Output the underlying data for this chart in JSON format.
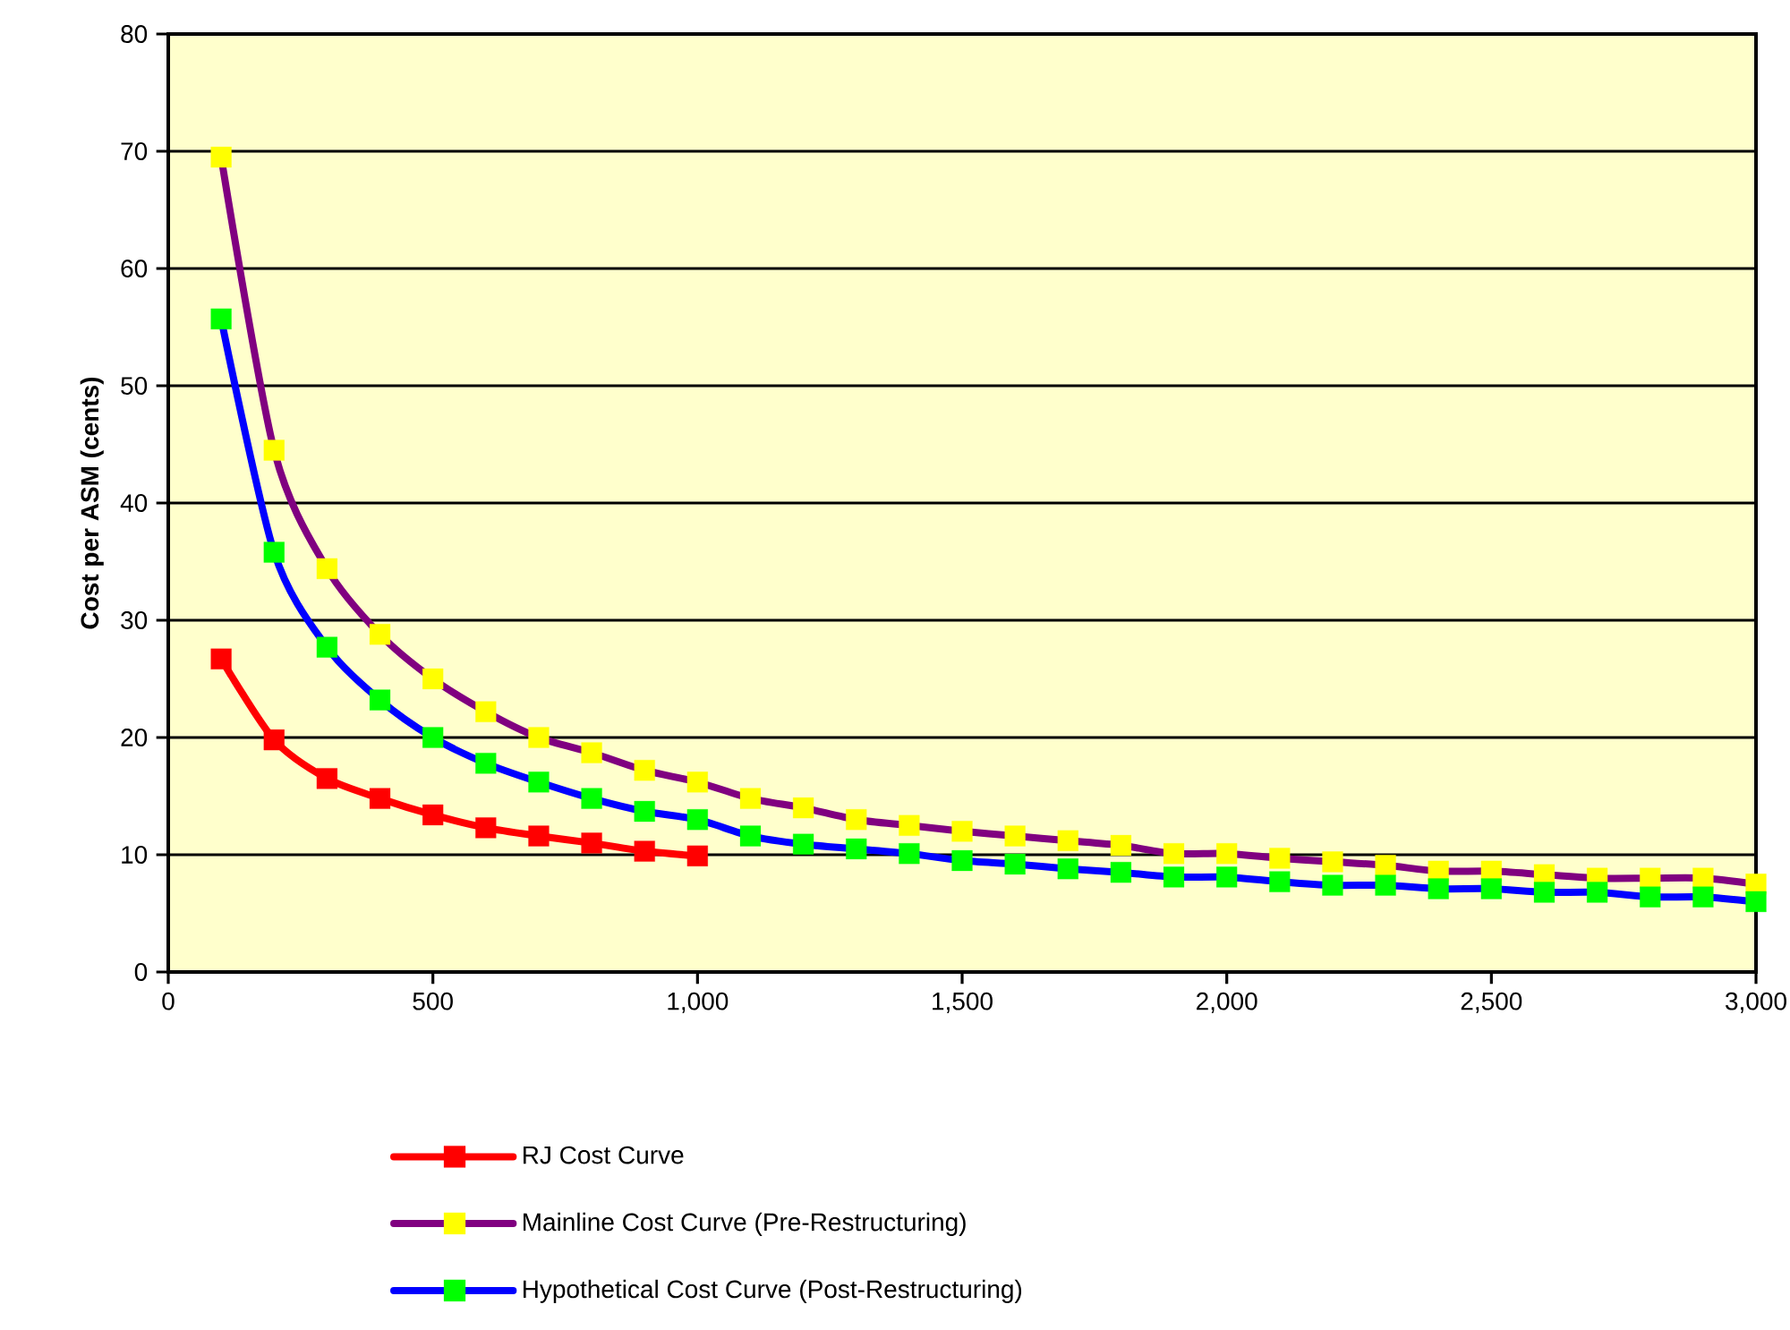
{
  "chart_data": {
    "type": "line",
    "ylabel": "Cost per ASM (cents)",
    "xlim": [
      0,
      3000
    ],
    "ylim": [
      0,
      80
    ],
    "xticks": [
      0,
      500,
      {
        "value": 1000,
        "label": "1,000"
      },
      {
        "value": 1500,
        "label": "1,500"
      },
      {
        "value": 2000,
        "label": "2,000"
      },
      {
        "value": 2500,
        "label": "2,500"
      },
      {
        "value": 3000,
        "label": "3,000"
      }
    ],
    "yticks": [
      0,
      10,
      20,
      30,
      40,
      50,
      60,
      70,
      80
    ],
    "grid": "y",
    "legend": "bottom",
    "marker": "square",
    "line_style": "solid",
    "series": [
      {
        "name": "RJ Cost Curve",
        "color": "#ff0000",
        "colors": [
          "#ff0000",
          "#ff0000",
          "#ff0000",
          "#ff0000",
          "#ff0000",
          "#ff0000",
          "#ff0000",
          "#ff0000",
          "#ff0000",
          "#ff0000"
        ],
        "x": [
          100,
          200,
          300,
          400,
          500,
          600,
          700,
          800,
          900,
          1000
        ],
        "values": [
          26.7,
          19.8,
          16.5,
          14.8,
          13.4,
          12.3,
          11.6,
          11.0,
          10.3,
          9.9
        ]
      },
      {
        "name": "Mainline Cost Curve (Pre-Restructuring)",
        "color": "#800080",
        "colors": [
          "#ffff00",
          "#ffff00",
          "#ffff00",
          "#ffff00",
          "#ffff00",
          "#ffff00",
          "#ffff00",
          "#ffff00",
          "#ffff00",
          "#ffff00",
          "#ffff00",
          "#ffff00",
          "#ffff00",
          "#ffff00",
          "#ffff00",
          "#ffff00",
          "#ffff00",
          "#ffff00",
          "#ffff00",
          "#ffff00",
          "#ffff00",
          "#ffff00",
          "#ffff00",
          "#ffff00",
          "#ffff00",
          "#ffff00",
          "#ffff00",
          "#ffff00",
          "#ffff00",
          "#ffff00"
        ],
        "x": [
          100,
          200,
          300,
          400,
          500,
          600,
          700,
          800,
          900,
          1000,
          1100,
          1200,
          1300,
          1400,
          1500,
          1600,
          1700,
          1800,
          1900,
          2000,
          2100,
          2200,
          2300,
          2400,
          2500,
          2600,
          2700,
          2800,
          2900,
          3000
        ],
        "values": [
          69.5,
          44.5,
          34.4,
          28.8,
          25.0,
          22.2,
          20.0,
          18.7,
          17.2,
          16.2,
          14.8,
          14.0,
          13.0,
          12.5,
          12.0,
          11.6,
          11.2,
          10.8,
          10.1,
          10.1,
          9.7,
          9.4,
          9.1,
          8.6,
          8.6,
          8.3,
          8.0,
          8.0,
          8.0,
          7.5
        ]
      },
      {
        "name": "Hypothetical Cost Curve (Post-Restructuring)",
        "color": "#0000ff",
        "colors": [
          "#00ff00",
          "#00ff00",
          "#00ff00",
          "#00ff00",
          "#00ff00",
          "#00ff00",
          "#00ff00",
          "#00ff00",
          "#00ff00",
          "#00ff00",
          "#00ff00",
          "#00ff00",
          "#00ff00",
          "#00ff00",
          "#00ff00",
          "#00ff00",
          "#00ff00",
          "#00ff00",
          "#00ff00",
          "#00ff00",
          "#00ff00",
          "#00ff00",
          "#00ff00",
          "#00ff00",
          "#00ff00",
          "#00ff00",
          "#00ff00",
          "#00ff00",
          "#00ff00",
          "#00ff00"
        ],
        "x": [
          100,
          200,
          300,
          400,
          500,
          600,
          700,
          800,
          900,
          1000,
          1100,
          1200,
          1300,
          1400,
          1500,
          1600,
          1700,
          1800,
          1900,
          2000,
          2100,
          2200,
          2300,
          2400,
          2500,
          2600,
          2700,
          2800,
          2900,
          3000
        ],
        "values": [
          55.7,
          35.8,
          27.7,
          23.2,
          20.0,
          17.8,
          16.2,
          14.8,
          13.7,
          13.0,
          11.6,
          10.9,
          10.5,
          10.1,
          9.5,
          9.2,
          8.8,
          8.5,
          8.1,
          8.1,
          7.7,
          7.4,
          7.4,
          7.1,
          7.1,
          6.8,
          6.8,
          6.4,
          6.4,
          6.0
        ]
      }
    ]
  }
}
